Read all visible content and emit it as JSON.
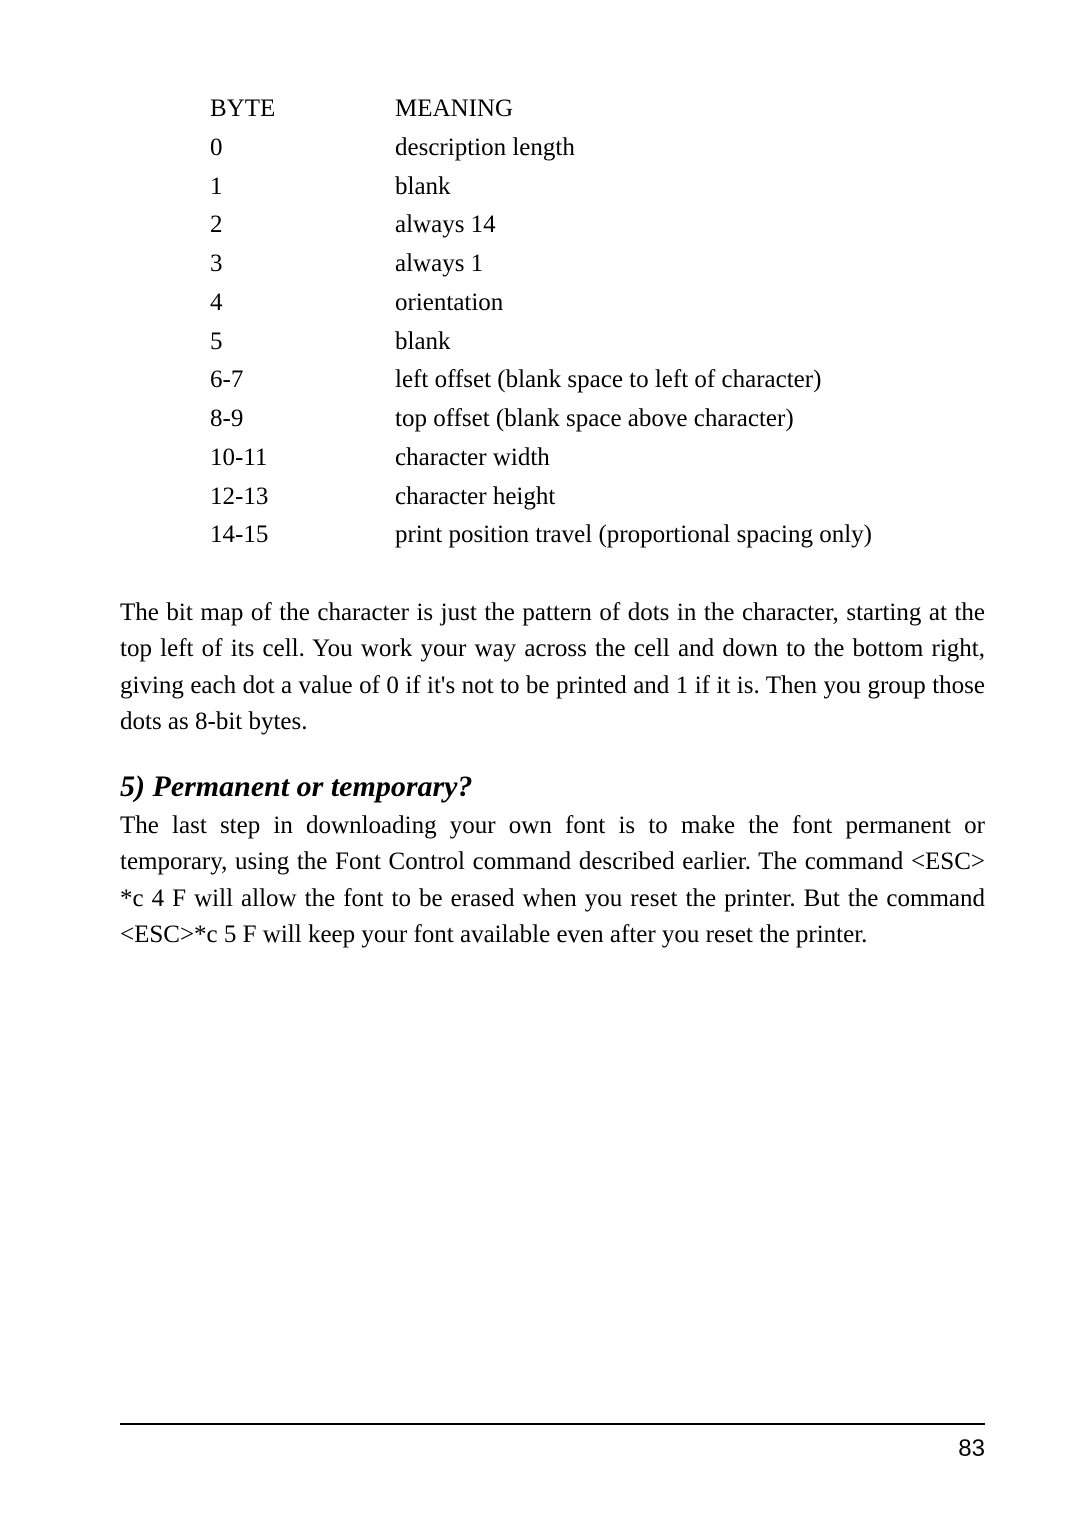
{
  "byteTable": {
    "header": {
      "byte": "BYTE",
      "meaning": "MEANING"
    },
    "rows": [
      {
        "byte": "0",
        "meaning": "description length"
      },
      {
        "byte": "1",
        "meaning": "blank"
      },
      {
        "byte": "2",
        "meaning": "always 14"
      },
      {
        "byte": "3",
        "meaning": "always 1"
      },
      {
        "byte": "4",
        "meaning": "orientation"
      },
      {
        "byte": "5",
        "meaning": "blank"
      },
      {
        "byte": "6-7",
        "meaning": "left offset (blank space to left of character)"
      },
      {
        "byte": "8-9",
        "meaning": "top offset (blank space above character)"
      },
      {
        "byte": "10-11",
        "meaning": "character width"
      },
      {
        "byte": "12-13",
        "meaning": "character height"
      },
      {
        "byte": "14-15",
        "meaning": "print position travel (proportional spacing only)"
      }
    ]
  },
  "paragraph1": "The bit map of the character is just the pattern of dots in the character, starting at the top left of its cell. You work your way across the cell and down to the bottom right, giving each dot a value of 0 if it's not to be printed and 1 if it is. Then you group those dots as 8-bit bytes.",
  "section5": {
    "heading": "5) Permanent or temporary?",
    "body": "The last step in downloading your own font is to make the font permanent or temporary, using the Font Control command described earlier. The command <ESC> *c 4 F will allow the font to be erased when you reset the printer. But the command <ESC>*c 5 F will keep your font available even after you reset the printer."
  },
  "pageNumber": "83"
}
